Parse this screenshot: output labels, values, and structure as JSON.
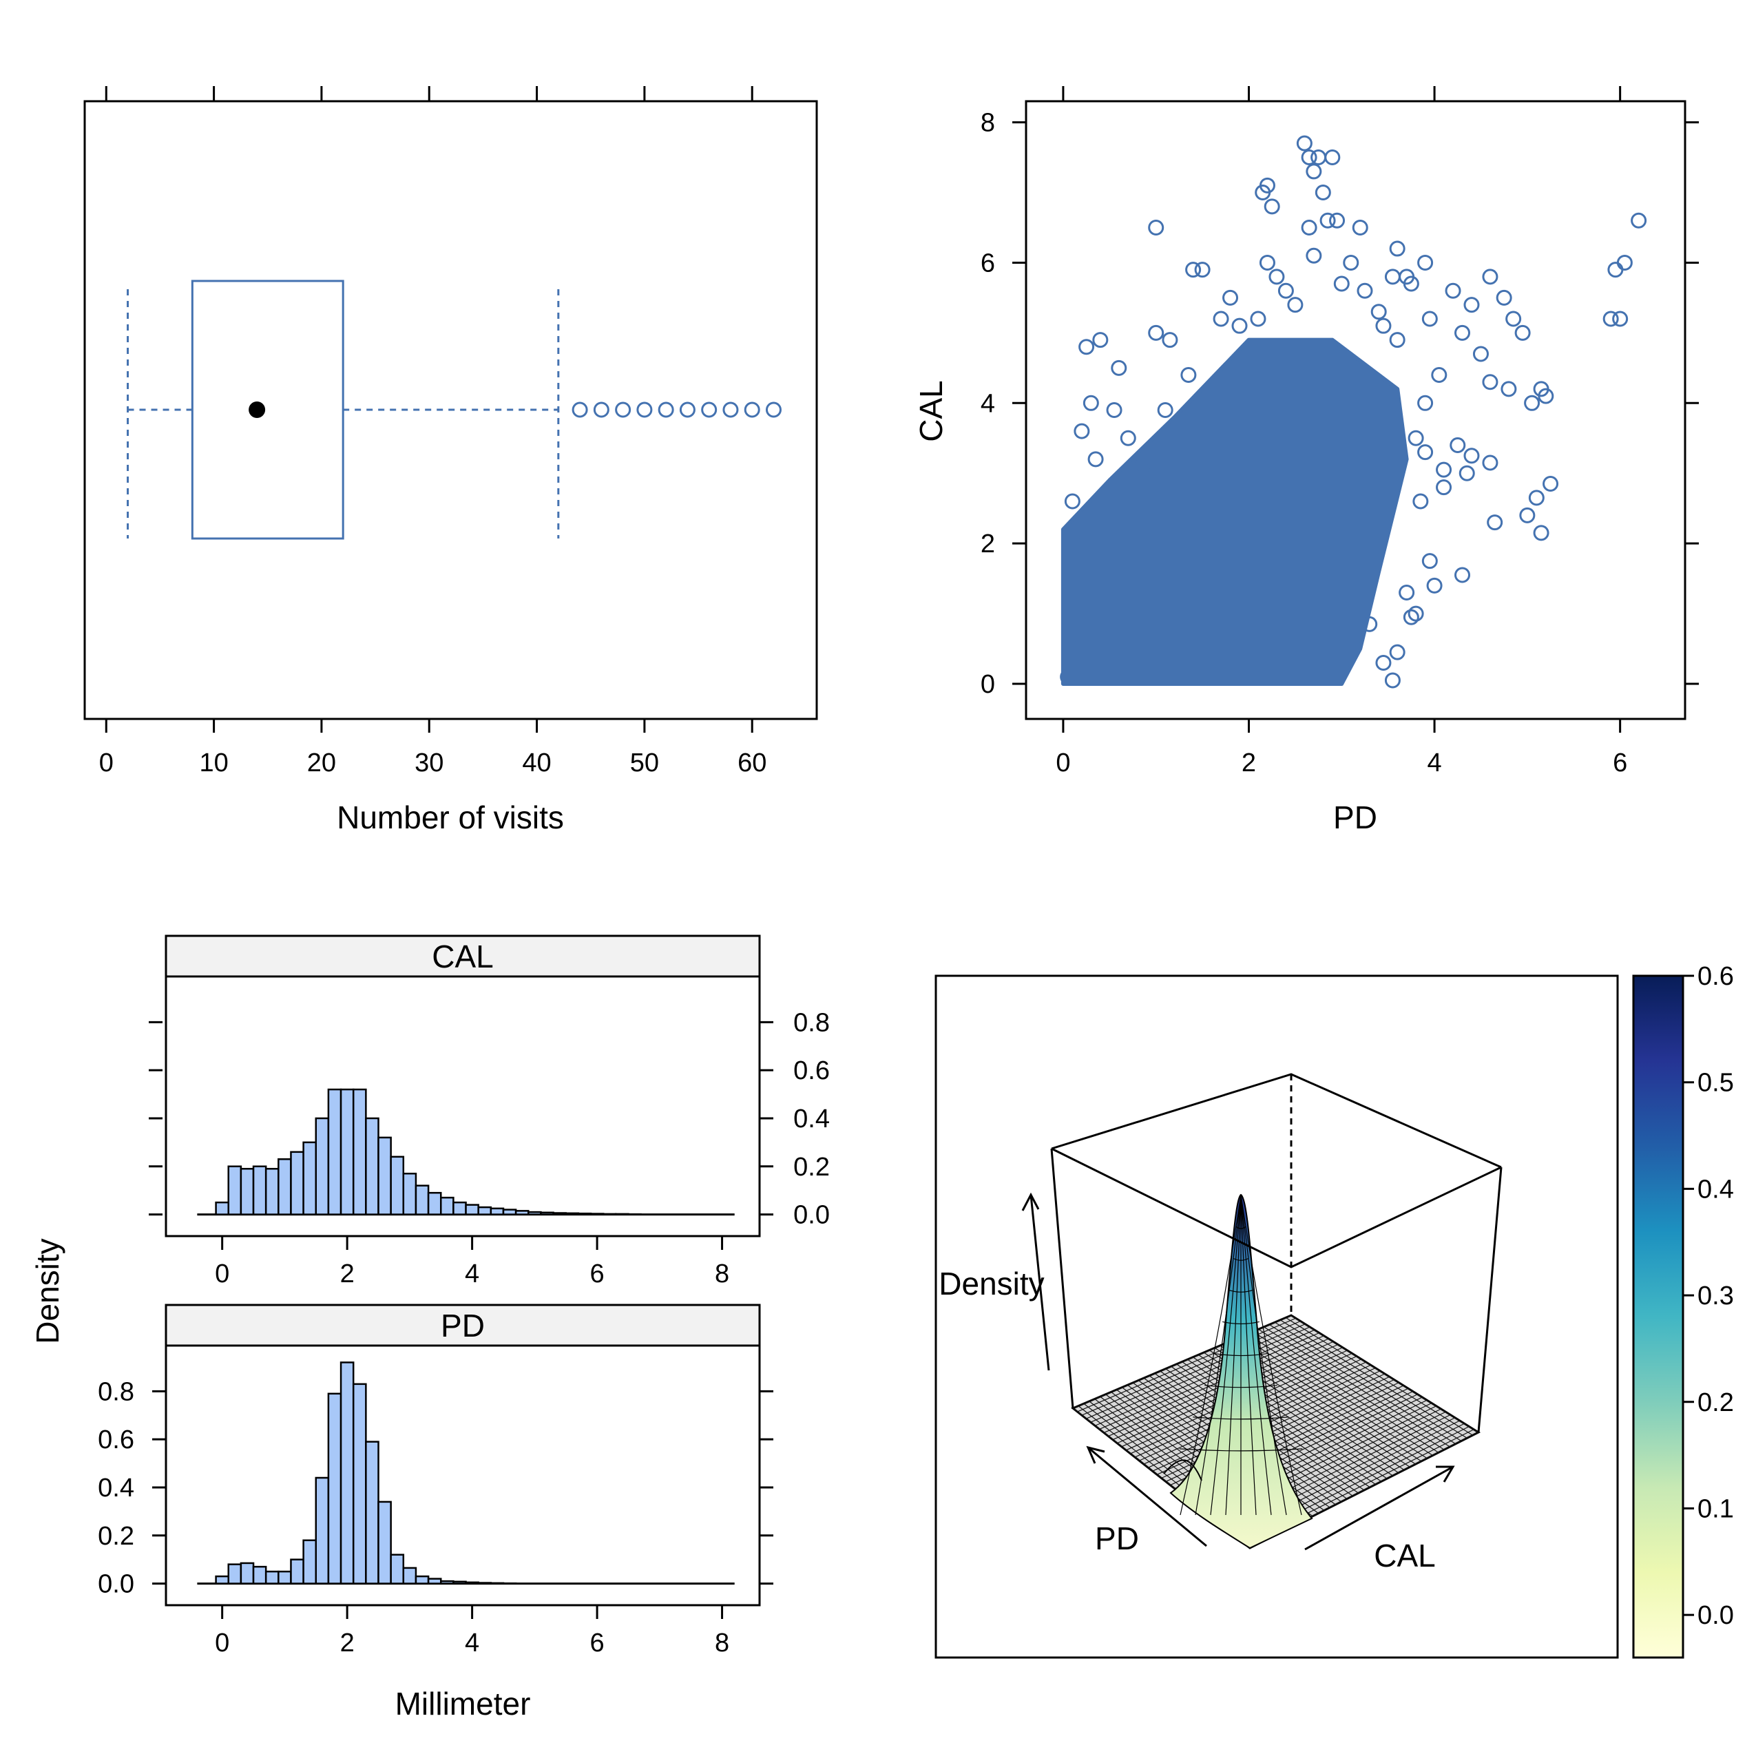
{
  "colors": {
    "series": "#4472B0",
    "hist_fill": "#A8C8F8",
    "strip_bg": "#F2F2F2",
    "colorbar": [
      "#FFFFD9",
      "#EDF8B1",
      "#C7E9B4",
      "#7FCDBB",
      "#41B6C4",
      "#1D91C0",
      "#225EA8",
      "#253494",
      "#081D58"
    ]
  },
  "chart_data": [
    {
      "type": "box",
      "id": "visits",
      "xlabel": "Number of visits",
      "xlim": [
        -2,
        66
      ],
      "xticks": [
        0,
        10,
        20,
        30,
        40,
        50,
        60
      ],
      "whisker_low": 2,
      "q1": 8,
      "median": 14,
      "q3": 22,
      "whisker_high": 42,
      "outliers": [
        44,
        46,
        48,
        50,
        52,
        54,
        56,
        58,
        60,
        62
      ]
    },
    {
      "type": "scatter",
      "id": "cal_vs_pd",
      "xlabel": "PD",
      "ylabel": "CAL",
      "xlim": [
        -0.4,
        6.7
      ],
      "ylim": [
        -0.5,
        8.3
      ],
      "xticks": [
        0,
        2,
        4,
        6
      ],
      "yticks": [
        0,
        2,
        4,
        6,
        8
      ],
      "dense_region": [
        [
          0,
          0
        ],
        [
          0,
          2.2
        ],
        [
          0.5,
          2.9
        ],
        [
          1.2,
          3.8
        ],
        [
          2,
          4.9
        ],
        [
          2.9,
          4.9
        ],
        [
          3.6,
          4.2
        ],
        [
          3.7,
          3.2
        ],
        [
          3.4,
          1.6
        ],
        [
          3.2,
          0.5
        ],
        [
          3.0,
          0
        ],
        [
          0,
          0
        ]
      ],
      "points": [
        [
          0.05,
          0.1
        ],
        [
          0.1,
          0.5
        ],
        [
          0.2,
          1.2
        ],
        [
          0.15,
          2.0
        ],
        [
          0.1,
          2.6
        ],
        [
          0.2,
          3.6
        ],
        [
          0.3,
          4.0
        ],
        [
          0.25,
          4.8
        ],
        [
          0.4,
          4.9
        ],
        [
          0.35,
          3.2
        ],
        [
          0.55,
          3.9
        ],
        [
          0.6,
          4.5
        ],
        [
          0.7,
          3.5
        ],
        [
          0.85,
          3.1
        ],
        [
          1.0,
          6.5
        ],
        [
          1.0,
          5.0
        ],
        [
          1.15,
          4.9
        ],
        [
          1.1,
          3.9
        ],
        [
          1.4,
          5.9
        ],
        [
          1.5,
          5.9
        ],
        [
          1.35,
          4.4
        ],
        [
          1.7,
          5.2
        ],
        [
          1.8,
          5.5
        ],
        [
          1.9,
          5.1
        ],
        [
          2.1,
          5.2
        ],
        [
          2.3,
          5.8
        ],
        [
          2.2,
          6.0
        ],
        [
          2.15,
          7.0
        ],
        [
          2.2,
          7.1
        ],
        [
          2.25,
          6.8
        ],
        [
          2.6,
          7.7
        ],
        [
          2.65,
          7.5
        ],
        [
          2.7,
          7.3
        ],
        [
          2.75,
          7.5
        ],
        [
          2.8,
          7.0
        ],
        [
          2.9,
          7.5
        ],
        [
          2.85,
          6.6
        ],
        [
          2.95,
          6.6
        ],
        [
          2.65,
          6.5
        ],
        [
          2.7,
          6.1
        ],
        [
          3.2,
          6.5
        ],
        [
          3.1,
          6.0
        ],
        [
          3.0,
          5.7
        ],
        [
          3.25,
          5.6
        ],
        [
          3.4,
          5.3
        ],
        [
          3.55,
          5.8
        ],
        [
          3.6,
          6.2
        ],
        [
          3.7,
          5.8
        ],
        [
          3.75,
          5.7
        ],
        [
          3.9,
          6.0
        ],
        [
          3.95,
          5.2
        ],
        [
          4.2,
          5.6
        ],
        [
          4.4,
          5.4
        ],
        [
          4.3,
          5.0
        ],
        [
          4.5,
          4.7
        ],
        [
          4.6,
          5.8
        ],
        [
          4.75,
          5.5
        ],
        [
          4.85,
          5.2
        ],
        [
          4.8,
          4.2
        ],
        [
          4.95,
          5.0
        ],
        [
          4.6,
          4.3
        ],
        [
          4.25,
          3.4
        ],
        [
          4.35,
          3.0
        ],
        [
          4.1,
          2.8
        ],
        [
          3.95,
          1.75
        ],
        [
          4.0,
          1.4
        ],
        [
          4.3,
          1.55
        ],
        [
          3.8,
          1.0
        ],
        [
          3.75,
          0.95
        ],
        [
          3.6,
          0.45
        ],
        [
          3.55,
          0.05
        ],
        [
          3.9,
          3.3
        ],
        [
          4.1,
          3.05
        ],
        [
          4.65,
          2.3
        ],
        [
          5.05,
          4.0
        ],
        [
          5.2,
          4.1
        ],
        [
          5.15,
          4.2
        ],
        [
          5.1,
          2.65
        ],
        [
          5.0,
          2.4
        ],
        [
          5.15,
          2.15
        ],
        [
          5.25,
          2.85
        ],
        [
          4.6,
          3.15
        ],
        [
          4.4,
          3.25
        ],
        [
          5.9,
          5.2
        ],
        [
          6.0,
          5.2
        ],
        [
          5.95,
          5.9
        ],
        [
          6.05,
          6.0
        ],
        [
          6.2,
          6.6
        ],
        [
          3.85,
          2.6
        ],
        [
          3.7,
          1.3
        ],
        [
          3.45,
          0.3
        ],
        [
          3.3,
          0.85
        ],
        [
          3.8,
          3.5
        ],
        [
          3.9,
          4.0
        ],
        [
          4.05,
          4.4
        ],
        [
          3.6,
          4.9
        ],
        [
          3.45,
          5.1
        ],
        [
          2.5,
          5.4
        ],
        [
          2.4,
          5.6
        ]
      ]
    },
    {
      "type": "bar",
      "id": "hist_cal",
      "strip": "CAL",
      "bin_width": 0.2,
      "bin_start": -0.1,
      "xlim": [
        -0.9,
        8.6
      ],
      "ylim": [
        -0.09,
        0.99
      ],
      "xticks": [
        0,
        2,
        4,
        6,
        8
      ],
      "yticks": [
        0.0,
        0.2,
        0.4,
        0.6,
        0.8
      ],
      "values": [
        0.05,
        0.2,
        0.19,
        0.2,
        0.19,
        0.23,
        0.26,
        0.3,
        0.4,
        0.52,
        0.52,
        0.52,
        0.4,
        0.32,
        0.24,
        0.17,
        0.12,
        0.09,
        0.07,
        0.05,
        0.04,
        0.03,
        0.025,
        0.02,
        0.015,
        0.01,
        0.008,
        0.006,
        0.005,
        0.004,
        0.003,
        0.002,
        0.002,
        0.001
      ]
    },
    {
      "type": "bar",
      "id": "hist_pd",
      "strip": "PD",
      "bin_width": 0.2,
      "bin_start": -0.1,
      "xlim": [
        -0.9,
        8.6
      ],
      "ylim": [
        -0.09,
        0.99
      ],
      "xticks": [
        0,
        2,
        4,
        6,
        8
      ],
      "yticks": [
        0.0,
        0.2,
        0.4,
        0.6,
        0.8
      ],
      "values": [
        0.03,
        0.08,
        0.085,
        0.07,
        0.05,
        0.05,
        0.1,
        0.18,
        0.44,
        0.79,
        0.92,
        0.83,
        0.59,
        0.34,
        0.12,
        0.065,
        0.03,
        0.02,
        0.01,
        0.008,
        0.005,
        0.003,
        0.002,
        0.001
      ],
      "xlabel": "Millimeter"
    },
    {
      "type": "surface",
      "id": "density_3d",
      "xlabel": "PD",
      "ylabel": "CAL",
      "zlabel": "Density",
      "peak": {
        "pd": 2.1,
        "cal": 2.0,
        "density": 0.6
      },
      "colorbar_range": [
        -0.04,
        0.6
      ],
      "colorbar_ticks": [
        0.0,
        0.1,
        0.2,
        0.3,
        0.4,
        0.5,
        0.6
      ]
    }
  ],
  "shared": {
    "hist_ylabel": "Density"
  }
}
